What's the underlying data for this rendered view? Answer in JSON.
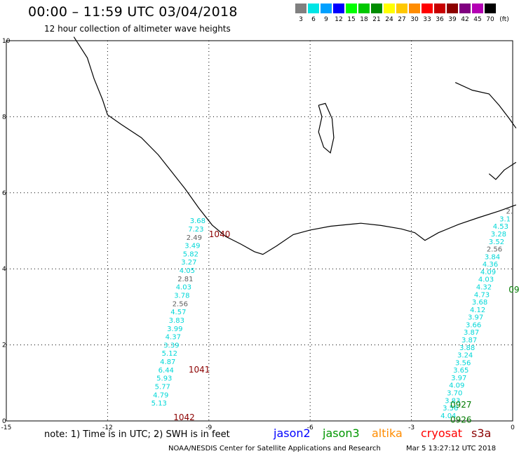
{
  "header": {
    "title": "00:00 – 11:59 UTC 03/04/2018",
    "subtitle": "12 hour collection of altimeter wave heights"
  },
  "legend": {
    "unit": "(ft)",
    "items": [
      {
        "label": "3",
        "color": "#808080"
      },
      {
        "label": "6",
        "color": "#00e5e5"
      },
      {
        "label": "9",
        "color": "#00a0ff"
      },
      {
        "label": "12",
        "color": "#0000ff"
      },
      {
        "label": "15",
        "color": "#00ff00"
      },
      {
        "label": "18",
        "color": "#00c800"
      },
      {
        "label": "21",
        "color": "#008c00"
      },
      {
        "label": "24",
        "color": "#ffff00"
      },
      {
        "label": "27",
        "color": "#ffc800"
      },
      {
        "label": "30",
        "color": "#ff8c00"
      },
      {
        "label": "33",
        "color": "#ff0000"
      },
      {
        "label": "36",
        "color": "#c80000"
      },
      {
        "label": "39",
        "color": "#8c0000"
      },
      {
        "label": "42",
        "color": "#800080"
      },
      {
        "label": "45",
        "color": "#b400b4"
      },
      {
        "label": "70",
        "color": "#000000"
      }
    ]
  },
  "map": {
    "x_range": [
      -15,
      0
    ],
    "y_range": [
      0,
      10
    ],
    "x_ticks": [
      {
        "v": -15,
        "t": "-15"
      },
      {
        "v": -12,
        "t": "-12"
      },
      {
        "v": -9,
        "t": "-9"
      },
      {
        "v": -6,
        "t": "-6"
      },
      {
        "v": -3,
        "t": "-3"
      },
      {
        "v": 0,
        "t": "0"
      }
    ],
    "y_ticks": [
      {
        "v": 0,
        "t": "0"
      },
      {
        "v": 2,
        "t": "2"
      },
      {
        "v": 4,
        "t": "4"
      },
      {
        "v": 6,
        "t": "6"
      },
      {
        "v": 8,
        "t": "8"
      },
      {
        "v": 10,
        "t": "10"
      }
    ],
    "coastline": [
      [
        -13.0,
        10.1
      ],
      [
        -12.6,
        9.55
      ],
      [
        -12.4,
        9.0
      ],
      [
        -12.15,
        8.45
      ],
      [
        -12.0,
        8.05
      ],
      [
        -11.6,
        7.8
      ],
      [
        -11.0,
        7.45
      ],
      [
        -10.5,
        7.0
      ],
      [
        -10.1,
        6.55
      ],
      [
        -9.7,
        6.1
      ],
      [
        -9.3,
        5.6
      ],
      [
        -8.9,
        5.15
      ],
      [
        -8.5,
        4.85
      ],
      [
        -8.05,
        4.65
      ],
      [
        -7.65,
        4.45
      ],
      [
        -7.4,
        4.38
      ],
      [
        -7.0,
        4.6
      ],
      [
        -6.5,
        4.9
      ],
      [
        -6.0,
        5.02
      ],
      [
        -5.4,
        5.12
      ],
      [
        -4.5,
        5.2
      ],
      [
        -3.9,
        5.14
      ],
      [
        -3.3,
        5.05
      ],
      [
        -2.9,
        4.95
      ],
      [
        -2.6,
        4.75
      ],
      [
        -2.2,
        4.95
      ],
      [
        -1.6,
        5.17
      ],
      [
        -1.0,
        5.35
      ],
      [
        -0.4,
        5.52
      ],
      [
        0.1,
        5.68
      ]
    ],
    "lake": [
      [
        -5.75,
        8.3
      ],
      [
        -5.65,
        8.0
      ],
      [
        -5.75,
        7.6
      ],
      [
        -5.6,
        7.2
      ],
      [
        -5.4,
        7.05
      ],
      [
        -5.3,
        7.45
      ],
      [
        -5.35,
        7.95
      ],
      [
        -5.55,
        8.35
      ],
      [
        -5.75,
        8.3
      ]
    ],
    "border_ne": [
      [
        -1.7,
        8.9
      ],
      [
        -1.2,
        8.7
      ],
      [
        -0.7,
        8.6
      ],
      [
        -0.4,
        8.3
      ],
      [
        -0.1,
        7.95
      ],
      [
        0.1,
        7.7
      ]
    ],
    "border_e": [
      [
        -0.7,
        6.5
      ],
      [
        -0.5,
        6.35
      ],
      [
        -0.25,
        6.6
      ],
      [
        0.1,
        6.8
      ]
    ],
    "label_color": "#8b0000",
    "track_colors": {
      "cyan": "#00d7d7",
      "gray": "#606060"
    },
    "time_labels": [
      {
        "text": "1040",
        "x": -9.0,
        "y": 4.83,
        "color": "label"
      },
      {
        "text": "1041",
        "x": -9.6,
        "y": 1.27,
        "color": "label"
      },
      {
        "text": "1042",
        "x": -10.05,
        "y": 0.02,
        "color": "label"
      },
      {
        "text": "0927",
        "x": -1.85,
        "y": 0.35,
        "color": "#007a00"
      },
      {
        "text": "0926",
        "x": -1.85,
        "y": -0.05,
        "color": "#007a00"
      },
      {
        "text": "09",
        "x": -0.12,
        "y": 3.38,
        "color": "#007a00"
      }
    ],
    "track_left": {
      "readings": [
        "3.68",
        "7.23",
        "2.49",
        "3.49",
        "5.82",
        "3.27",
        "4.05",
        "2.81",
        "4.03",
        "3.78",
        "2.56",
        "4.57",
        "3.83",
        "3.99",
        "4.37",
        "3.39",
        "5.12",
        "4.87",
        "6.44",
        "5.93",
        "5.77",
        "4.79",
        "5.13"
      ],
      "start": [
        -9.1,
        5.2
      ],
      "step": [
        -0.052,
        -0.218
      ]
    },
    "track_right": {
      "readings": [
        "2.",
        "3.1",
        "4.53",
        "3.28",
        "3.52",
        "2.56",
        "3.84",
        "4.36",
        "4.09",
        "4.03",
        "4.32",
        "4.73",
        "3.68",
        "4.12",
        "3.97",
        "3.66",
        "3.87",
        "3.87",
        "3.88",
        "3.24",
        "3.56",
        "3.65",
        "3.97",
        "4.09",
        "3.70",
        "3.83",
        "3.56",
        "4.04"
      ],
      "start": [
        0.0,
        5.45
      ],
      "step": [
        -0.062,
        -0.199
      ]
    }
  },
  "footer": {
    "note": "note: 1) Time is in UTC; 2) SWH is in feet",
    "satellites": [
      {
        "name": "jason2",
        "color": "#0000ff"
      },
      {
        "name": "jason3",
        "color": "#009600"
      },
      {
        "name": "altika",
        "color": "#ff8c00"
      },
      {
        "name": "cryosat",
        "color": "#ff0000"
      },
      {
        "name": "s3a",
        "color": "#8b0000"
      }
    ],
    "credit": "NOAA/NESDIS Center for Satellite Applications and Research",
    "timestamp": "Mar  5 13:27:12 UTC 2018"
  }
}
